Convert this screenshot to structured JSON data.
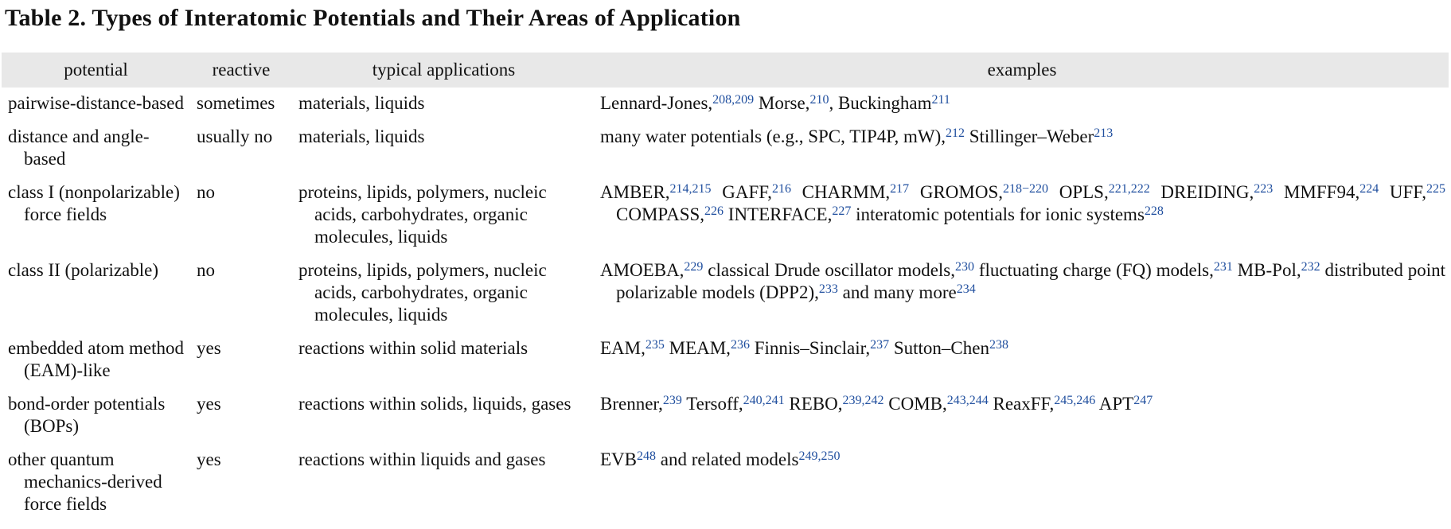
{
  "title": "Table 2. Types of Interatomic Potentials and Their Areas of Application",
  "columns": [
    "potential",
    "reactive",
    "typical applications",
    "examples"
  ],
  "rows": [
    {
      "potential": "pairwise-distance-based",
      "reactive": "sometimes",
      "applications": "materials, liquids",
      "examples": [
        {
          "text": "Lennard-Jones,"
        },
        {
          "sup": "208,209"
        },
        {
          "text": " Morse,"
        },
        {
          "sup": "210"
        },
        {
          "text": ", Buckingham"
        },
        {
          "sup": "211"
        }
      ]
    },
    {
      "potential": "distance and angle-based",
      "reactive": "usually no",
      "applications": "materials, liquids",
      "examples": [
        {
          "text": "many water potentials (e.g., SPC, TIP4P, mW),"
        },
        {
          "sup": "212"
        },
        {
          "text": " Stillinger–Weber"
        },
        {
          "sup": "213"
        }
      ]
    },
    {
      "potential": "class I (nonpolarizable) force fields",
      "reactive": "no",
      "applications": "proteins, lipids, polymers, nucleic acids, carbohydrates, organic molecules, liquids",
      "examples": [
        {
          "text": "AMBER,"
        },
        {
          "sup": "214,215"
        },
        {
          "text": " GAFF,"
        },
        {
          "sup": "216"
        },
        {
          "text": " CHARMM,"
        },
        {
          "sup": "217"
        },
        {
          "text": " GROMOS,"
        },
        {
          "sup": "218−220"
        },
        {
          "text": " OPLS,"
        },
        {
          "sup": "221,222"
        },
        {
          "text": " DREIDING,"
        },
        {
          "sup": "223"
        },
        {
          "text": " MMFF94,"
        },
        {
          "sup": "224"
        },
        {
          "text": " UFF,"
        },
        {
          "sup": "225"
        },
        {
          "text": " COMPASS,"
        },
        {
          "sup": "226"
        },
        {
          "text": " INTERFACE,"
        },
        {
          "sup": "227"
        },
        {
          "text": " interatomic potentials for ionic systems"
        },
        {
          "sup": "228"
        }
      ]
    },
    {
      "potential": "class II (polarizable)",
      "reactive": "no",
      "applications": "proteins, lipids, polymers, nucleic acids, carbohydrates, organic molecules, liquids",
      "examples": [
        {
          "text": "AMOEBA,"
        },
        {
          "sup": "229"
        },
        {
          "text": " classical Drude oscillator models,"
        },
        {
          "sup": "230"
        },
        {
          "text": " fluctuating charge (FQ) models,"
        },
        {
          "sup": "231"
        },
        {
          "text": " MB-Pol,"
        },
        {
          "sup": "232"
        },
        {
          "text": " distributed point polarizable models (DPP2),"
        },
        {
          "sup": "233"
        },
        {
          "text": " and many more"
        },
        {
          "sup": "234"
        }
      ]
    },
    {
      "potential": "embedded atom method (EAM)-like",
      "reactive": "yes",
      "applications": "reactions within solid materials",
      "examples": [
        {
          "text": "EAM,"
        },
        {
          "sup": "235"
        },
        {
          "text": " MEAM,"
        },
        {
          "sup": "236"
        },
        {
          "text": " Finnis–Sinclair,"
        },
        {
          "sup": "237"
        },
        {
          "text": " Sutton–Chen"
        },
        {
          "sup": "238"
        }
      ]
    },
    {
      "potential": "bond-order potentials (BOPs)",
      "reactive": "yes",
      "applications": "reactions within solids, liquids, gases",
      "examples": [
        {
          "text": "Brenner,"
        },
        {
          "sup": "239"
        },
        {
          "text": " Tersoff,"
        },
        {
          "sup": "240,241"
        },
        {
          "text": " REBO,"
        },
        {
          "sup": "239,242"
        },
        {
          "text": " COMB,"
        },
        {
          "sup": "243,244"
        },
        {
          "text": " ReaxFF,"
        },
        {
          "sup": "245,246"
        },
        {
          "text": " APT"
        },
        {
          "sup": "247"
        }
      ]
    },
    {
      "potential": "other quantum mechanics-derived force fields",
      "reactive": "yes",
      "applications": "reactions within liquids and gases",
      "examples": [
        {
          "text": "EVB"
        },
        {
          "sup": "248"
        },
        {
          "text": " and related models"
        },
        {
          "sup": "249,250"
        }
      ]
    }
  ]
}
